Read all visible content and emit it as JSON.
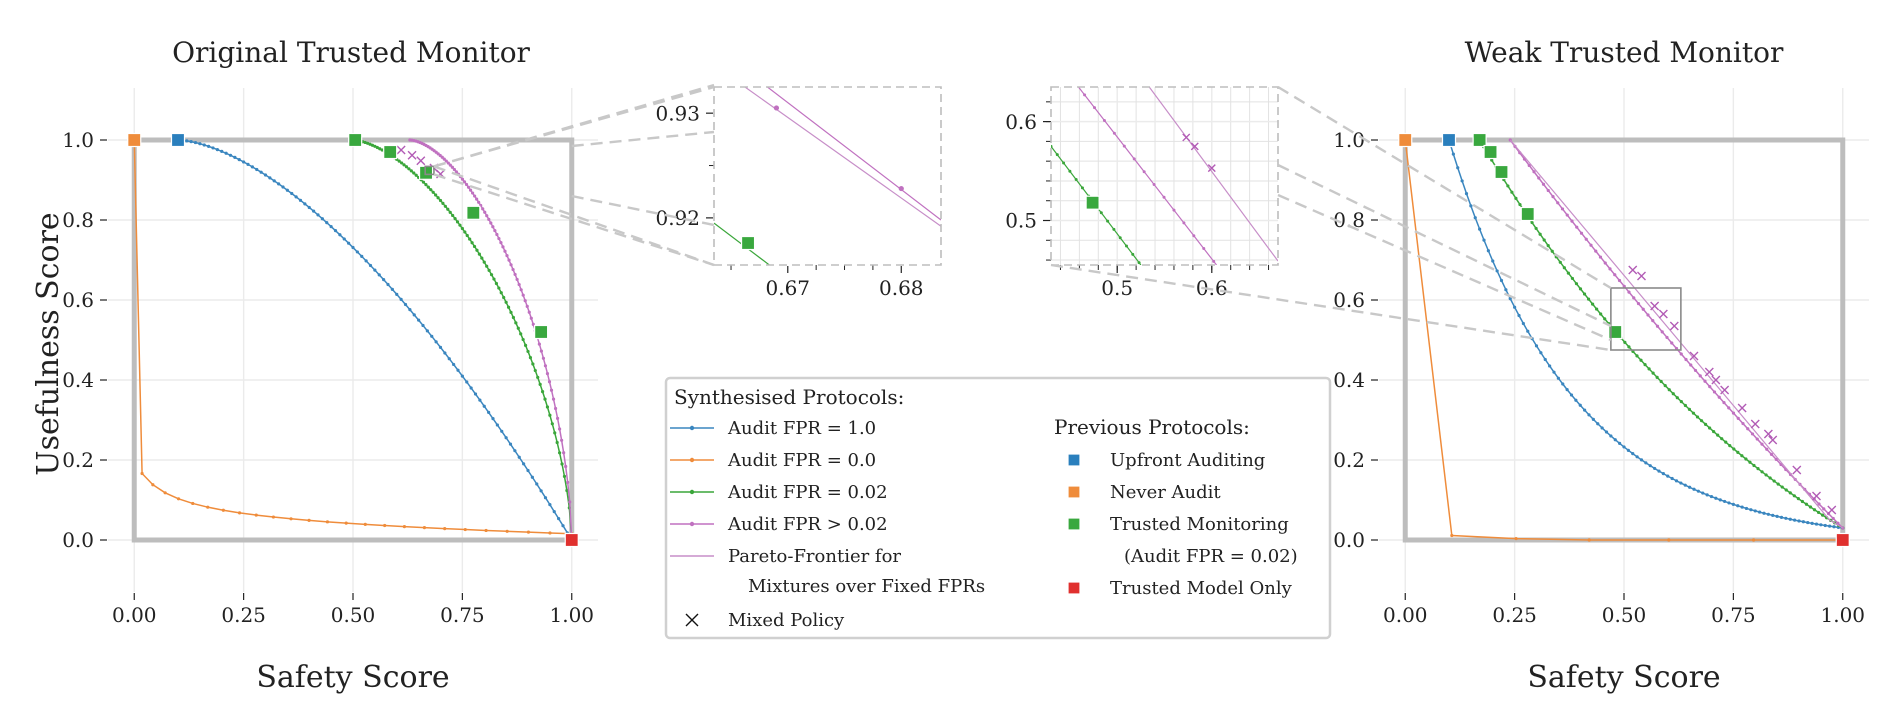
{
  "colors": {
    "fpr_1": "#3a86bf",
    "fpr_0": "#ef8c3b",
    "fpr_002": "#3aa63a",
    "fpr_gt": "#c071c0",
    "pareto": "#c78ec8",
    "mixed": "#b25bb5",
    "upfront": "#2a7fbd",
    "never": "#ef8c3b",
    "trusted_mon": "#39a83e",
    "trusted_model": "#e0302e",
    "frame": "#bdbdbd",
    "grid": "#ebebeb",
    "zoom_line": "#c8c8c8"
  },
  "chart_data": [
    {
      "id": "original",
      "type": "line",
      "title": "Original Trusted Monitor",
      "xlabel": "Safety Score",
      "ylabel": "Usefulness Score",
      "xlim": [
        -0.06,
        1.06
      ],
      "ylim": [
        -0.13,
        1.13
      ],
      "xticks": [
        "0.00",
        "0.25",
        "0.50",
        "0.75",
        "1.00"
      ],
      "yticks": [
        "0.0",
        "0.2",
        "0.4",
        "0.6",
        "0.8",
        "1.0"
      ],
      "grid": true,
      "series": [
        {
          "name": "Audit FPR = 1.0",
          "color_key": "fpr_1",
          "curve": "power",
          "from": [
            0.1,
            1.0
          ],
          "to": [
            1.0,
            0.0
          ],
          "a": 1.62,
          "n": 90
        },
        {
          "name": "Audit FPR = 0.0",
          "color_key": "fpr_0",
          "curve": "lshape",
          "from": [
            0.0,
            1.0
          ],
          "to": [
            1.0,
            0.0
          ],
          "k": 22.0,
          "m": 0.2,
          "n": 25
        },
        {
          "name": "Audit FPR = 0.02",
          "color_key": "fpr_002",
          "curve": "arc",
          "from": [
            0.5,
            1.0
          ],
          "to": [
            1.0,
            0.0
          ],
          "p": 1.6,
          "n": 90
        },
        {
          "name": "Audit FPR > 0.02",
          "color_key": "fpr_gt",
          "curve": "arc",
          "from": [
            0.63,
            1.0
          ],
          "to": [
            1.0,
            0.0
          ],
          "p": 1.65,
          "n": 80
        }
      ],
      "markers": [
        {
          "label": "Upfront Auditing",
          "color_key": "upfront",
          "points": [
            [
              0.1,
              1.0
            ]
          ]
        },
        {
          "label": "Never Audit",
          "color_key": "never",
          "points": [
            [
              0.0,
              1.0
            ]
          ]
        },
        {
          "label": "Trusted Monitoring",
          "color_key": "trusted_mon",
          "points": [
            [
              0.505,
              1.0
            ],
            [
              0.585,
              0.97
            ],
            [
              0.667,
              0.918
            ],
            [
              0.775,
              0.818
            ],
            [
              0.93,
              0.52
            ]
          ]
        },
        {
          "label": "Trusted Model Only",
          "color_key": "trusted_model",
          "points": [
            [
              1.0,
              0.0
            ]
          ]
        }
      ],
      "mixed": [
        [
          0.61,
          0.975
        ],
        [
          0.635,
          0.962
        ],
        [
          0.655,
          0.948
        ],
        [
          0.685,
          0.93
        ],
        [
          0.7,
          0.915
        ]
      ],
      "inset_region": [
        0.665,
        0.685,
        0.914,
        0.934
      ]
    },
    {
      "id": "weak",
      "type": "line",
      "title": "Weak Trusted Monitor",
      "xlabel": "Safety Score",
      "ylabel": "",
      "xlim": [
        -0.06,
        1.06
      ],
      "ylim": [
        -0.13,
        1.13
      ],
      "xticks": [
        "0.00",
        "0.25",
        "0.50",
        "0.75",
        "1.00"
      ],
      "yticks": [
        "0.0",
        "0.2",
        "0.4",
        "0.6",
        "0.8",
        "1.0"
      ],
      "grid": true,
      "series": [
        {
          "name": "Audit FPR = 1.0",
          "color_key": "fpr_1",
          "curve": "decay",
          "from": [
            0.1,
            1.0
          ],
          "to": [
            1.0,
            0.03
          ],
          "c": 3.2,
          "n": 90
        },
        {
          "name": "Audit FPR = 0.0",
          "color_key": "fpr_0",
          "curve": "lshape",
          "from": [
            0.0,
            1.0
          ],
          "to": [
            1.0,
            0.0
          ],
          "k": 60.0,
          "m": 0.04,
          "n": 6
        },
        {
          "name": "Audit FPR = 0.02",
          "color_key": "fpr_002",
          "curve": "decay",
          "from": [
            0.17,
            1.0
          ],
          "to": [
            1.0,
            0.03
          ],
          "c": 1.0,
          "n": 90
        },
        {
          "name": "Audit FPR > 0.02",
          "color_key": "fpr_gt",
          "curve": "decay",
          "from": [
            0.24,
            1.0
          ],
          "to": [
            1.0,
            0.03
          ],
          "c": 0.3,
          "n": 70
        }
      ],
      "pareto": [
        [
          0.24,
          1.0
        ],
        [
          0.97,
          0.05
        ],
        [
          1.0,
          0.03
        ]
      ],
      "markers": [
        {
          "label": "Upfront Auditing",
          "color_key": "upfront",
          "points": [
            [
              0.1,
              1.0
            ]
          ]
        },
        {
          "label": "Never Audit",
          "color_key": "never",
          "points": [
            [
              0.0,
              1.0
            ]
          ]
        },
        {
          "label": "Trusted Monitoring",
          "color_key": "trusted_mon",
          "points": [
            [
              0.17,
              1.0
            ],
            [
              0.195,
              0.97
            ],
            [
              0.22,
              0.92
            ],
            [
              0.28,
              0.815
            ],
            [
              0.48,
              0.52
            ]
          ]
        },
        {
          "label": "Trusted Model Only",
          "color_key": "trusted_model",
          "points": [
            [
              1.0,
              0.0
            ]
          ]
        }
      ],
      "mixed": [
        [
          0.52,
          0.675
        ],
        [
          0.54,
          0.66
        ],
        [
          0.57,
          0.585
        ],
        [
          0.59,
          0.565
        ],
        [
          0.615,
          0.535
        ],
        [
          0.66,
          0.46
        ],
        [
          0.695,
          0.42
        ],
        [
          0.71,
          0.4
        ],
        [
          0.73,
          0.375
        ],
        [
          0.77,
          0.33
        ],
        [
          0.8,
          0.29
        ],
        [
          0.83,
          0.265
        ],
        [
          0.84,
          0.25
        ],
        [
          0.895,
          0.175
        ],
        [
          0.94,
          0.11
        ],
        [
          0.975,
          0.075
        ]
      ],
      "inset_region": [
        0.47,
        0.63,
        0.475,
        0.63
      ]
    },
    {
      "id": "zoom1",
      "type": "line",
      "xlim": [
        0.6635,
        0.6835
      ],
      "ylim": [
        0.9155,
        0.9325
      ],
      "xticks": [
        "0.67",
        "0.68"
      ],
      "yticks": [
        "0.92",
        "0.93"
      ],
      "grid": false,
      "lines": [
        {
          "color_key": "fpr_gt",
          "points": [
            [
              0.667,
              0.9335
            ],
            [
              0.6835,
              0.9198
            ]
          ]
        },
        {
          "color_key": "pareto",
          "points": [
            [
              0.6635,
              0.9346
            ],
            [
              0.6835,
              0.9192
            ]
          ]
        },
        {
          "color_key": "fpr_002",
          "points": [
            [
              0.6635,
              0.9195
            ],
            [
              0.6685,
              0.9154
            ]
          ]
        }
      ],
      "dots": [
        {
          "color_key": "fpr_gt",
          "points": [
            [
              0.669,
              0.9305
            ],
            [
              0.68,
              0.9228
            ]
          ]
        }
      ],
      "markers": [
        {
          "color_key": "trusted_mon",
          "points": [
            [
              0.6665,
              0.9176
            ]
          ]
        }
      ]
    },
    {
      "id": "zoom2",
      "type": "line",
      "xlim": [
        0.43,
        0.67
      ],
      "ylim": [
        0.455,
        0.635
      ],
      "xticks": [
        "0.5",
        "0.6"
      ],
      "yticks": [
        "0.5",
        "0.6"
      ],
      "grid": true,
      "lines": [
        {
          "color_key": "fpr_002",
          "points": [
            [
              0.43,
              0.575
            ],
            [
              0.525,
              0.455
            ]
          ]
        },
        {
          "color_key": "fpr_gt",
          "points": [
            [
              0.455,
              0.64
            ],
            [
              0.605,
              0.455
            ]
          ]
        },
        {
          "color_key": "pareto",
          "points": [
            [
              0.53,
              0.64
            ],
            [
              0.67,
              0.459
            ]
          ]
        }
      ],
      "markers": [
        {
          "color_key": "trusted_mon",
          "points": [
            [
              0.474,
              0.518
            ]
          ]
        }
      ],
      "mixed": [
        [
          0.573,
          0.584
        ],
        [
          0.582,
          0.575
        ],
        [
          0.6,
          0.553
        ]
      ]
    }
  ],
  "legend": {
    "synth_title": "Synthesised Protocols:",
    "prev_title": "Previous Protocols:",
    "synth": [
      {
        "label": "Audit FPR = 1.0",
        "color_key": "fpr_1",
        "kind": "line"
      },
      {
        "label": "Audit FPR = 0.0",
        "color_key": "fpr_0",
        "kind": "line"
      },
      {
        "label": "Audit FPR = 0.02",
        "color_key": "fpr_002",
        "kind": "line"
      },
      {
        "label": "Audit FPR  >  0.02",
        "color_key": "fpr_gt",
        "kind": "line"
      },
      {
        "label": "Pareto-Frontier for",
        "label2": "Mixtures over Fixed FPRs",
        "color_key": "pareto",
        "kind": "plain"
      },
      {
        "label": "Mixed Policy",
        "color_key": "mixed",
        "kind": "cross"
      }
    ],
    "prev": [
      {
        "label": "Upfront Auditing",
        "color_key": "upfront"
      },
      {
        "label": "Never Audit",
        "color_key": "never"
      },
      {
        "label": "Trusted Monitoring",
        "label2": "(Audit FPR = 0.02)",
        "color_key": "trusted_mon"
      },
      {
        "label": "Trusted Model Only",
        "color_key": "trusted_model"
      }
    ]
  }
}
